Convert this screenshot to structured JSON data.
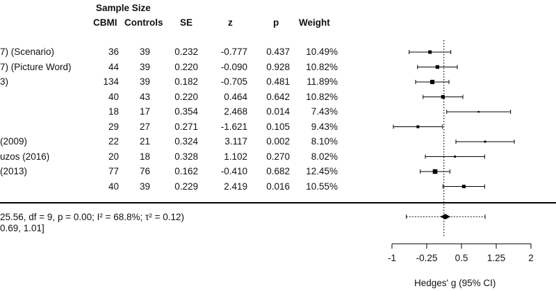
{
  "headers": {
    "sample_size": "Sample Size",
    "cbmi": "CBMI",
    "controls": "Controls",
    "se": "SE",
    "z": "z",
    "p": "p",
    "weight": "Weight"
  },
  "rows": [
    {
      "label": "7) (Scenario)",
      "cbmi": "36",
      "controls": "39",
      "se": "0.232",
      "z": "-0.777",
      "p": "0.437",
      "weight": "10.49%"
    },
    {
      "label": "7) (Picture Word)",
      "cbmi": "44",
      "controls": "39",
      "se": "0.220",
      "z": "-0.090",
      "p": "0.928",
      "weight": "10.82%"
    },
    {
      "label": "3)",
      "cbmi": "134",
      "controls": "39",
      "se": "0.182",
      "z": "-0.705",
      "p": "0.481",
      "weight": "11.89%"
    },
    {
      "label": "",
      "cbmi": "40",
      "controls": "43",
      "se": "0.220",
      "z": "0.464",
      "p": "0.642",
      "weight": "10.82%"
    },
    {
      "label": "",
      "cbmi": "18",
      "controls": "17",
      "se": "0.354",
      "z": "2.468",
      "p": "0.014",
      "weight": "7.43%"
    },
    {
      "label": "",
      "cbmi": "29",
      "controls": "27",
      "se": "0.271",
      "z": "-1.621",
      "p": "0.105",
      "weight": "9.43%"
    },
    {
      "label": "(2009)",
      "cbmi": "22",
      "controls": "21",
      "se": "0.324",
      "z": "3.117",
      "p": "0.002",
      "weight": "8.10%"
    },
    {
      "label": "uzos (2016)",
      "cbmi": "20",
      "controls": "18",
      "se": "0.328",
      "z": "1.102",
      "p": "0.270",
      "weight": "8.02%"
    },
    {
      "label": "(2013)",
      "cbmi": "77",
      "controls": "76",
      "se": "0.162",
      "z": "-0.410",
      "p": "0.682",
      "weight": "12.45%"
    },
    {
      "label": "",
      "cbmi": "40",
      "controls": "39",
      "se": "0.229",
      "z": "2.419",
      "p": "0.016",
      "weight": "10.55%"
    }
  ],
  "summary_line1": "25.56, df = 9, p = 0.00; I² = 68.8%; τ² = 0.12)",
  "summary_line2": "0.69, 1.01]",
  "colors": {
    "marker": "#000000",
    "axis": "#000000",
    "ref_line": "#000000"
  },
  "chart_data": {
    "type": "forest",
    "xlabel": "Hedges' g (95% CI)",
    "xlim": [
      -1,
      2
    ],
    "ticks": [
      -1,
      -0.25,
      0.5,
      1.25,
      2
    ],
    "tick_labels": [
      "-1",
      "-0.25",
      "0.5",
      "1.25",
      "2"
    ],
    "reference_line": 0.12,
    "studies": [
      {
        "g": -0.18,
        "lo": -0.63,
        "hi": 0.27,
        "weight": 10.49
      },
      {
        "g": -0.02,
        "lo": -0.45,
        "hi": 0.41,
        "weight": 10.82
      },
      {
        "g": -0.13,
        "lo": -0.49,
        "hi": 0.23,
        "weight": 11.89
      },
      {
        "g": 0.1,
        "lo": -0.33,
        "hi": 0.53,
        "weight": 10.82
      },
      {
        "g": 0.87,
        "lo": 0.18,
        "hi": 1.56,
        "weight": 7.43
      },
      {
        "g": -0.44,
        "lo": -0.97,
        "hi": 0.09,
        "weight": 9.43
      },
      {
        "g": 1.01,
        "lo": 0.38,
        "hi": 1.64,
        "weight": 8.1
      },
      {
        "g": 0.36,
        "lo": -0.28,
        "hi": 1.0,
        "weight": 8.02
      },
      {
        "g": -0.07,
        "lo": -0.39,
        "hi": 0.25,
        "weight": 12.45
      },
      {
        "g": 0.55,
        "lo": 0.1,
        "hi": 1.0,
        "weight": 10.55
      }
    ],
    "pooled": {
      "g": 0.15,
      "lo": 0.04,
      "hi": 0.26,
      "pi_lo": -0.69,
      "pi_hi": 1.01
    }
  }
}
